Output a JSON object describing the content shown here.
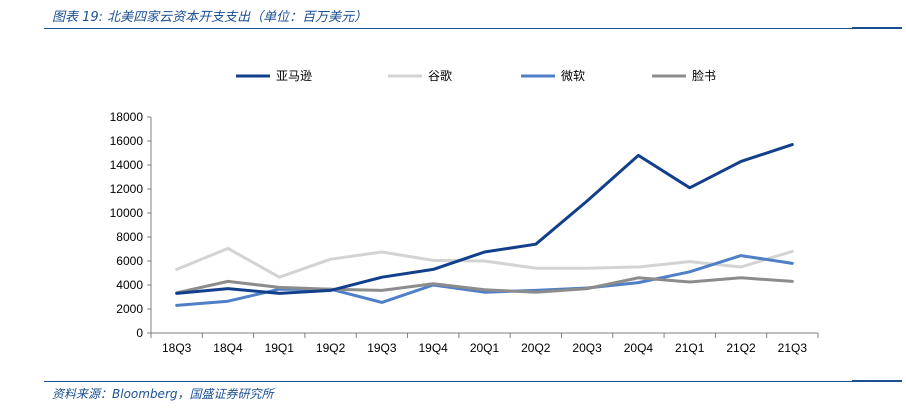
{
  "header": {
    "title": "图表 19:  北美四家云资本开支支出（单位：百万美元）"
  },
  "footer": {
    "source": "资料来源：Bloomberg，国盛证券研究所"
  },
  "chart_data": {
    "type": "line",
    "title": "北美四家云资本开支支出（单位：百万美元）",
    "xlabel": "",
    "ylabel": "",
    "ylim": [
      0,
      18000
    ],
    "yticks": [
      0,
      2000,
      4000,
      6000,
      8000,
      10000,
      12000,
      14000,
      16000,
      18000
    ],
    "legend_position": "top",
    "grid": false,
    "categories": [
      "18Q3",
      "18Q4",
      "19Q1",
      "19Q2",
      "19Q3",
      "19Q4",
      "20Q1",
      "20Q2",
      "20Q3",
      "20Q4",
      "21Q1",
      "21Q2",
      "21Q3"
    ],
    "series": [
      {
        "name": "亚马逊",
        "color": "#123f8c",
        "values": [
          3300,
          3700,
          3300,
          3550,
          4650,
          5300,
          6750,
          7400,
          11000,
          14800,
          12100,
          14300,
          15700
        ]
      },
      {
        "name": "谷歌",
        "color": "#d3d3d3",
        "values": [
          5300,
          7050,
          4650,
          6150,
          6750,
          6050,
          6000,
          5400,
          5400,
          5500,
          5950,
          5500,
          6800
        ]
      },
      {
        "name": "微软",
        "color": "#4f7fc7",
        "values": [
          2300,
          2650,
          3650,
          3650,
          2550,
          4000,
          3400,
          3550,
          3750,
          4200,
          5100,
          6450,
          5800
        ]
      },
      {
        "name": "脸书",
        "color": "#8c8c8c",
        "values": [
          3350,
          4300,
          3800,
          3650,
          3550,
          4100,
          3600,
          3400,
          3700,
          4600,
          4250,
          4600,
          4300
        ]
      }
    ]
  }
}
